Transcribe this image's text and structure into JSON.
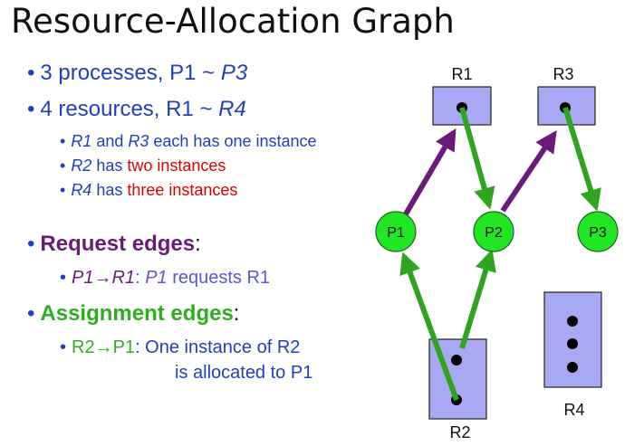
{
  "title": "Resource-Allocation Graph",
  "bullets": {
    "processes": {
      "prefix": "3 processes, P1 ~ ",
      "ital": "P3"
    },
    "resources": {
      "prefix": "4 resources, R1 ~ ",
      "ital": "R4"
    },
    "sub1": {
      "a": "R1",
      "b": " and ",
      "c": "R3",
      "d": " each has one instance"
    },
    "sub2": {
      "a": "R2",
      "b": " has ",
      "c": "two instances"
    },
    "sub3": {
      "a": "R4",
      "b": " has ",
      "c": "three instances"
    },
    "request": {
      "label": "Request edges",
      "colon": ":"
    },
    "request_ex": {
      "a": "P1",
      "arrow": "→",
      "b": "R1",
      "c": ": ",
      "d": "P1",
      "e": " requests R1"
    },
    "assign": {
      "label": "Assignment edges",
      "colon": ":"
    },
    "assign_ex": {
      "a": "R2",
      "arrow": "→",
      "b": "P1",
      "c": ": One instance of R2",
      "d": "is allocated to P1"
    }
  },
  "graph": {
    "resources": [
      {
        "id": "R1",
        "label": "R1",
        "instances": 1
      },
      {
        "id": "R2",
        "label": "R2",
        "instances": 2
      },
      {
        "id": "R3",
        "label": "R3",
        "instances": 1
      },
      {
        "id": "R4",
        "label": "R4",
        "instances": 3
      }
    ],
    "processes": [
      {
        "id": "P1",
        "label": "P1"
      },
      {
        "id": "P2",
        "label": "P2"
      },
      {
        "id": "P3",
        "label": "P3"
      }
    ],
    "request_edges": [
      {
        "from": "P1",
        "to": "R1"
      },
      {
        "from": "P2",
        "to": "R3"
      }
    ],
    "assignment_edges": [
      {
        "from": "R1",
        "to": "P2"
      },
      {
        "from": "R3",
        "to": "P3"
      },
      {
        "from": "R2",
        "to": "P1"
      },
      {
        "from": "R2",
        "to": "P2"
      }
    ],
    "colors": {
      "resource_fill": "#a9a9f3",
      "process_fill": "#22e622",
      "request_edge": "#6a1b7a",
      "assignment_edge": "#2fa51f",
      "text_blue": "#1f3fbf",
      "text_red": "#d80000",
      "text_purple": "#6a1b7a",
      "text_green": "#2fae1f"
    }
  }
}
